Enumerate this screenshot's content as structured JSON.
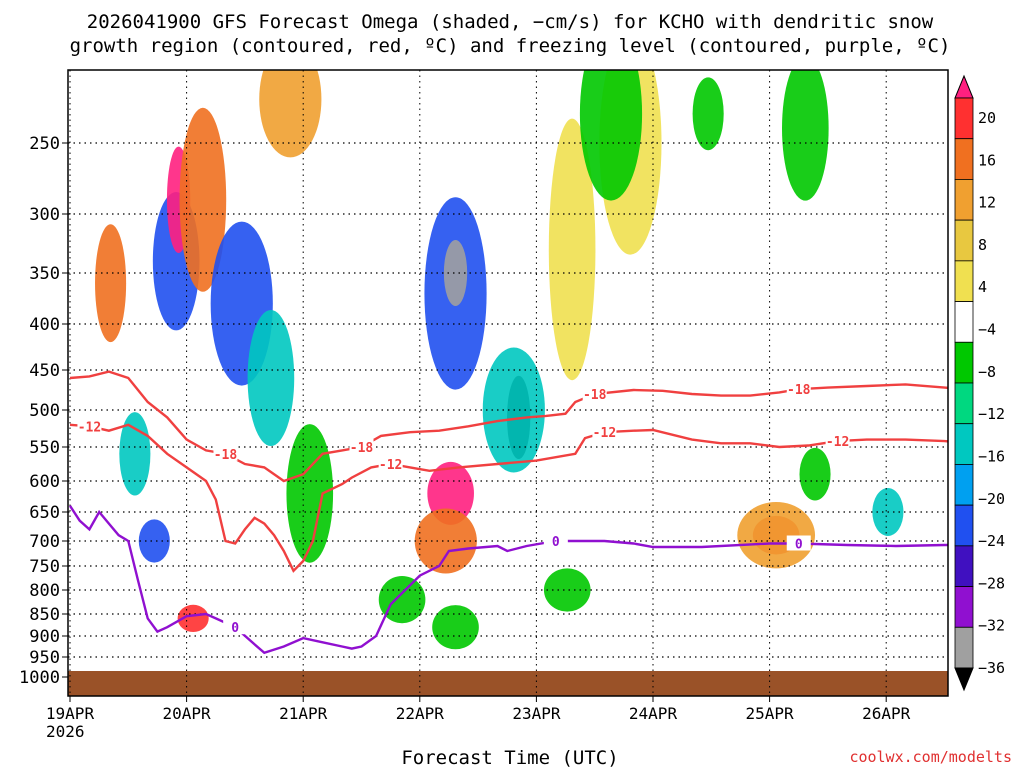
{
  "chart_data": {
    "type": "heatmap",
    "title_line1": "2026041900 GFS Forecast Omega (shaded, −cm/s) for KCHO with dendritic snow",
    "title_line2": "growth region (contoured, red, ºC) and freezing level (contoured, purple, ºC)",
    "xlabel": "Forecast Time (UTC)",
    "ylabel": "Pressure (hPa)",
    "credit": "coolwx.com/modelts",
    "x_ticks": [
      {
        "label": "19APR",
        "hour": 0
      },
      {
        "label": "20APR",
        "hour": 24
      },
      {
        "label": "21APR",
        "hour": 48
      },
      {
        "label": "22APR",
        "hour": 72
      },
      {
        "label": "23APR",
        "hour": 96
      },
      {
        "label": "24APR",
        "hour": 120
      },
      {
        "label": "25APR",
        "hour": 144
      },
      {
        "label": "26APR",
        "hour": 168
      }
    ],
    "x_year_label": "2026",
    "xlim_hours": [
      0,
      186
    ],
    "y_ticks": [
      {
        "label": "250",
        "p": 250
      },
      {
        "label": "300",
        "p": 300
      },
      {
        "label": "350",
        "p": 350
      },
      {
        "label": "400",
        "p": 400
      },
      {
        "label": "450",
        "p": 450
      },
      {
        "label": "500",
        "p": 500
      },
      {
        "label": "550",
        "p": 550
      },
      {
        "label": "600",
        "p": 600
      },
      {
        "label": "650",
        "p": 650
      },
      {
        "label": "700",
        "p": 700
      },
      {
        "label": "750",
        "p": 750
      },
      {
        "label": "800",
        "p": 800
      },
      {
        "label": "850",
        "p": 850
      },
      {
        "label": "900",
        "p": 900
      },
      {
        "label": "950",
        "p": 950
      },
      {
        "label": "1000",
        "p": 1000
      }
    ],
    "ylim_hpa": [
      200,
      1030
    ],
    "colorbar": {
      "labels": [
        "20",
        "16",
        "12",
        "8",
        "4",
        "−4",
        "−8",
        "−12",
        "−16",
        "−20",
        "−24",
        "−28",
        "−32",
        "−36"
      ],
      "colors": [
        "#ff2080",
        "#ff3030",
        "#f07020",
        "#f0a030",
        "#e8c840",
        "#f0e050",
        "#ffffff",
        "#00c800",
        "#00d880",
        "#00c8c0",
        "#00a0f0",
        "#2050f0",
        "#4010c0",
        "#9010d0",
        "#a0a0a0",
        "#000000"
      ]
    },
    "contours": {
      "freezing_level": {
        "label": "0",
        "color": "#9010d0",
        "points": [
          [
            0,
            640
          ],
          [
            2,
            665
          ],
          [
            4,
            680
          ],
          [
            6,
            650
          ],
          [
            8,
            670
          ],
          [
            10,
            690
          ],
          [
            12,
            700
          ],
          [
            14,
            780
          ],
          [
            16,
            860
          ],
          [
            18,
            890
          ],
          [
            20,
            880
          ],
          [
            24,
            855
          ],
          [
            28,
            850
          ],
          [
            30,
            860
          ],
          [
            34,
            880
          ],
          [
            38,
            920
          ],
          [
            40,
            940
          ],
          [
            44,
            925
          ],
          [
            48,
            905
          ],
          [
            52,
            915
          ],
          [
            56,
            925
          ],
          [
            58,
            930
          ],
          [
            60,
            925
          ],
          [
            63,
            900
          ],
          [
            66,
            830
          ],
          [
            69,
            800
          ],
          [
            72,
            770
          ],
          [
            76,
            750
          ],
          [
            78,
            720
          ],
          [
            82,
            715
          ],
          [
            88,
            710
          ],
          [
            90,
            720
          ],
          [
            94,
            710
          ],
          [
            100,
            700
          ],
          [
            110,
            700
          ],
          [
            116,
            705
          ],
          [
            120,
            712
          ],
          [
            130,
            712
          ],
          [
            144,
            705
          ],
          [
            150,
            705
          ],
          [
            160,
            708
          ],
          [
            170,
            710
          ],
          [
            180,
            708
          ],
          [
            186,
            708
          ]
        ]
      },
      "minus12": {
        "label": "-12",
        "color": "#f04040",
        "points": [
          [
            0,
            520
          ],
          [
            4,
            522
          ],
          [
            8,
            528
          ],
          [
            12,
            520
          ],
          [
            16,
            535
          ],
          [
            20,
            560
          ],
          [
            24,
            580
          ],
          [
            28,
            600
          ],
          [
            30,
            630
          ],
          [
            32,
            700
          ],
          [
            34,
            705
          ],
          [
            36,
            680
          ],
          [
            38,
            660
          ],
          [
            40,
            670
          ],
          [
            42,
            690
          ],
          [
            44,
            720
          ],
          [
            46,
            760
          ],
          [
            48,
            740
          ],
          [
            50,
            700
          ],
          [
            52,
            620
          ],
          [
            56,
            605
          ],
          [
            58,
            595
          ],
          [
            62,
            580
          ],
          [
            66,
            575
          ],
          [
            70,
            580
          ],
          [
            74,
            585
          ],
          [
            80,
            580
          ],
          [
            88,
            575
          ],
          [
            96,
            570
          ],
          [
            104,
            560
          ],
          [
            106,
            538
          ],
          [
            110,
            530
          ],
          [
            116,
            528
          ],
          [
            120,
            527
          ],
          [
            128,
            540
          ],
          [
            134,
            545
          ],
          [
            140,
            545
          ],
          [
            146,
            550
          ],
          [
            152,
            548
          ],
          [
            158,
            542
          ],
          [
            164,
            540
          ],
          [
            172,
            540
          ],
          [
            180,
            542
          ],
          [
            186,
            545
          ]
        ]
      },
      "minus18": {
        "label": "-18",
        "color": "#f04040",
        "points": [
          [
            0,
            460
          ],
          [
            4,
            458
          ],
          [
            8,
            452
          ],
          [
            12,
            460
          ],
          [
            16,
            490
          ],
          [
            20,
            510
          ],
          [
            24,
            540
          ],
          [
            28,
            555
          ],
          [
            32,
            560
          ],
          [
            36,
            575
          ],
          [
            40,
            580
          ],
          [
            44,
            600
          ],
          [
            48,
            590
          ],
          [
            52,
            560
          ],
          [
            56,
            555
          ],
          [
            60,
            550
          ],
          [
            64,
            535
          ],
          [
            70,
            530
          ],
          [
            76,
            528
          ],
          [
            82,
            522
          ],
          [
            88,
            515
          ],
          [
            94,
            510
          ],
          [
            98,
            508
          ],
          [
            102,
            505
          ],
          [
            104,
            490
          ],
          [
            108,
            480
          ],
          [
            116,
            475
          ],
          [
            122,
            476
          ],
          [
            128,
            480
          ],
          [
            134,
            482
          ],
          [
            140,
            482
          ],
          [
            146,
            478
          ],
          [
            150,
            474
          ],
          [
            156,
            472
          ],
          [
            164,
            470
          ],
          [
            172,
            468
          ],
          [
            180,
            472
          ],
          [
            186,
            475
          ]
        ]
      }
    },
    "omega_cells": [
      {
        "h": 16.5,
        "p": 340,
        "dh": 3,
        "dp": 120,
        "c": "#2050f0"
      },
      {
        "h": 17,
        "p": 290,
        "dh": 1.5,
        "dp": 80,
        "c": "#ff2080"
      },
      {
        "h": 22,
        "p": 290,
        "dh": 3,
        "dp": 140,
        "c": "#f07020"
      },
      {
        "h": 3,
        "p": 360,
        "dh": 2,
        "dp": 110,
        "c": "#f07020"
      },
      {
        "h": 30,
        "p": 380,
        "dh": 4,
        "dp": 160,
        "c": "#2050f0"
      },
      {
        "h": 36,
        "p": 460,
        "dh": 3,
        "dp": 160,
        "c": "#00c8c0"
      },
      {
        "h": 8,
        "p": 560,
        "dh": 2,
        "dp": 120,
        "c": "#00c8c0"
      },
      {
        "h": 12,
        "p": 700,
        "dh": 2,
        "dp": 80,
        "c": "#2050f0"
      },
      {
        "h": 20,
        "p": 860,
        "dh": 2,
        "dp": 60,
        "c": "#ff3030"
      },
      {
        "h": 74,
        "p": 370,
        "dh": 4,
        "dp": 180,
        "c": "#2050f0"
      },
      {
        "h": 74,
        "p": 350,
        "dh": 1.5,
        "dp": 60,
        "c": "#a0a0a0"
      },
      {
        "h": 73,
        "p": 620,
        "dh": 3,
        "dp": 100,
        "c": "#ff2080"
      },
      {
        "h": 72,
        "p": 700,
        "dh": 4,
        "dp": 120,
        "c": "#f07020"
      },
      {
        "h": 87,
        "p": 510,
        "dh": 1.5,
        "dp": 110,
        "c": "#000000"
      },
      {
        "h": 86,
        "p": 500,
        "dh": 4,
        "dp": 160,
        "c": "#00c8c0"
      },
      {
        "h": 74,
        "p": 880,
        "dh": 3,
        "dp": 100,
        "c": "#00c800"
      },
      {
        "h": 63,
        "p": 820,
        "dh": 3,
        "dp": 100,
        "c": "#00c800"
      },
      {
        "h": 97,
        "p": 800,
        "dh": 3,
        "dp": 90,
        "c": "#00c800"
      },
      {
        "h": 140,
        "p": 690,
        "dh": 3,
        "dp": 70,
        "c": "#ff3030"
      },
      {
        "h": 140,
        "p": 690,
        "dh": 5,
        "dp": 120,
        "c": "#f0a030"
      },
      {
        "h": 180,
        "p": 400,
        "dh": 2,
        "dp": 200,
        "c": "#9010d0"
      },
      {
        "h": 180,
        "p": 330,
        "dh": 1.2,
        "dp": 120,
        "c": "#a0a0a0"
      },
      {
        "h": 183,
        "p": 600,
        "dh": 2,
        "dp": 320,
        "c": "#000000"
      },
      {
        "h": 182,
        "p": 700,
        "dh": 4,
        "dp": 200,
        "c": "#2050f0"
      },
      {
        "h": 185,
        "p": 330,
        "dh": 1.5,
        "dp": 60,
        "c": "#ff3030"
      },
      {
        "h": 163,
        "p": 650,
        "dh": 2,
        "dp": 80,
        "c": "#00c8c0"
      },
      {
        "h": 148,
        "p": 590,
        "dh": 2,
        "dp": 80,
        "c": "#00c800"
      },
      {
        "h": 126,
        "p": 230,
        "dh": 2,
        "dp": 50,
        "c": "#00c800"
      },
      {
        "h": 146,
        "p": 240,
        "dh": 3,
        "dp": 100,
        "c": "#00c800"
      },
      {
        "h": 110,
        "p": 250,
        "dh": 4,
        "dp": 160,
        "c": "#f0e050"
      },
      {
        "h": 98,
        "p": 330,
        "dh": 3,
        "dp": 220,
        "c": "#f0e050"
      },
      {
        "h": 106,
        "p": 230,
        "dh": 4,
        "dp": 120,
        "c": "#00c800"
      },
      {
        "h": 44,
        "p": 620,
        "dh": 3,
        "dp": 220,
        "c": "#00c800"
      },
      {
        "h": 40,
        "p": 220,
        "dh": 4,
        "dp": 80,
        "c": "#f0a030"
      }
    ]
  }
}
